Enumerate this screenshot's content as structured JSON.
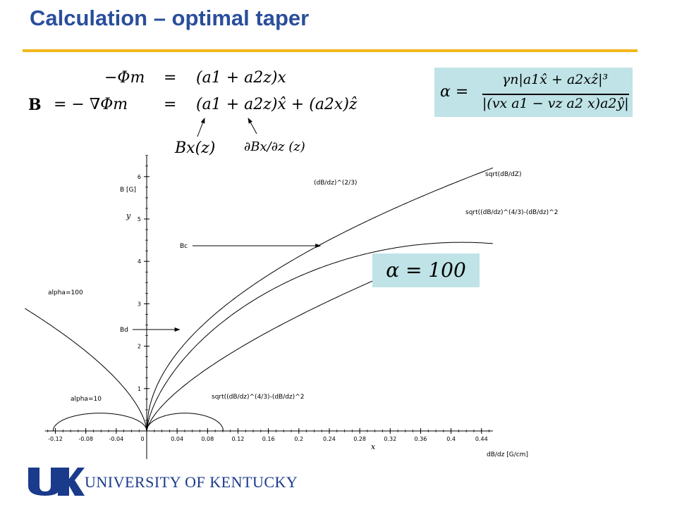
{
  "header": {
    "title": "Calculation – optimal taper"
  },
  "equations": {
    "line1_lhs": "−Φm",
    "line1_eq": "=",
    "line1_rhs": "(a1 + a2z)x",
    "line2_lhs": "B",
    "line2_mid": "= − ∇Φm",
    "line2_eq": "=",
    "line2_rhs": "(a1 + a2z)x̂ + (a2x)ẑ",
    "annot_left": "Bx(z)",
    "annot_right": "∂Bx/∂z (z)"
  },
  "alpha_formula": {
    "lhs": "α =",
    "numerator": "γn|a1x̂ + a2xẑ|³",
    "denominator": "|(vx a1 − vz a2 x)a2ŷ|"
  },
  "alpha_value": "α = 100",
  "chart_data": {
    "type": "line",
    "xlabel": "dB/dz [G/cm]",
    "ylabel": "B [G]",
    "x_axis_letter": "x",
    "y_axis_letter": "y",
    "xlim": [
      -0.13,
      0.455
    ],
    "ylim": [
      -0.2,
      6.5
    ],
    "x_ticks": [
      "-0.12",
      "-0.08",
      "-0.04",
      "0",
      "0.04",
      "0.08",
      "0.12",
      "0.16",
      "0.2",
      "0.24",
      "0.28",
      "0.32",
      "0.36",
      "0.4",
      "0.44"
    ],
    "x_tick_values": [
      -0.12,
      -0.08,
      -0.04,
      0,
      0.04,
      0.08,
      0.12,
      0.16,
      0.2,
      0.24,
      0.28,
      0.32,
      0.36,
      0.4,
      0.44
    ],
    "y_ticks": [
      "1",
      "2",
      "3",
      "4",
      "5",
      "6"
    ],
    "y_tick_values": [
      1,
      2,
      3,
      4,
      5,
      6
    ],
    "series": [
      {
        "name": "(dB/dz)^(2/3)",
        "formula": "pow23"
      },
      {
        "name": "sqrt(dB/dZ)",
        "formula": "sqrt"
      },
      {
        "name": "sqrt((dB/dz)^(4/3)-(dB/dz)^2",
        "formula": "sqrtdiff"
      },
      {
        "name": "alpha=100",
        "formula": "alpha100"
      },
      {
        "name": "alpha=10",
        "formula": "alpha10"
      },
      {
        "name": "sqrt((dB/dz)^(4/3)-(dB/dz)^2",
        "formula": "smallarc"
      }
    ],
    "annotations": [
      {
        "text": "Bc",
        "x": 0.23,
        "y": 4.42
      },
      {
        "text": "Bd",
        "x": 0.045,
        "y": 2.39
      }
    ]
  },
  "footer": {
    "logo": "UK",
    "institution": "UNIVERSITY OF KENTUCKY"
  }
}
